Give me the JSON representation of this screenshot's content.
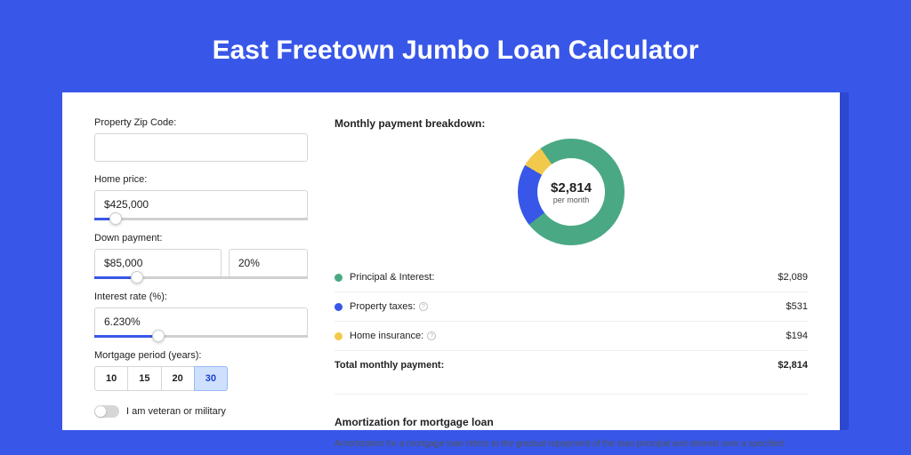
{
  "title": "East Freetown Jumbo Loan Calculator",
  "colors": {
    "page_bg": "#3857e8",
    "card_shadow": "#2c48d0",
    "card_bg": "#ffffff",
    "accent": "#3857e8",
    "text": "#222222",
    "muted": "#555555",
    "border": "#d6d6d6"
  },
  "form": {
    "zip": {
      "label": "Property Zip Code:",
      "value": ""
    },
    "home_price": {
      "label": "Home price:",
      "value": "$425,000",
      "slider_pct": 10
    },
    "down_payment": {
      "label": "Down payment:",
      "amount": "$85,000",
      "percent": "20%",
      "slider_pct": 20
    },
    "interest_rate": {
      "label": "Interest rate (%):",
      "value": "6.230%",
      "slider_pct": 30
    },
    "mortgage_period": {
      "label": "Mortgage period (years):",
      "options": [
        "10",
        "15",
        "20",
        "30"
      ],
      "selected": "30"
    },
    "veteran": {
      "label": "I am veteran or military",
      "checked": false
    }
  },
  "breakdown": {
    "title": "Monthly payment breakdown:",
    "donut": {
      "amount": "$2,814",
      "sub": "per month",
      "segments": [
        {
          "label": "Principal & Interest",
          "color": "#4aa984",
          "pct": 74.2
        },
        {
          "label": "Property taxes",
          "color": "#3857e8",
          "pct": 18.9
        },
        {
          "label": "Home insurance",
          "color": "#f2c94c",
          "pct": 6.9
        }
      ]
    },
    "rows": [
      {
        "dot": "#4aa984",
        "label": "Principal & Interest:",
        "value": "$2,089",
        "info": false
      },
      {
        "dot": "#3857e8",
        "label": "Property taxes:",
        "value": "$531",
        "info": true
      },
      {
        "dot": "#f2c94c",
        "label": "Home insurance:",
        "value": "$194",
        "info": true
      }
    ],
    "total": {
      "label": "Total monthly payment:",
      "value": "$2,814"
    }
  },
  "amortization": {
    "title": "Amortization for mortgage loan",
    "body": "Amortization for a mortgage loan refers to the gradual repayment of the loan principal and interest over a specified"
  }
}
